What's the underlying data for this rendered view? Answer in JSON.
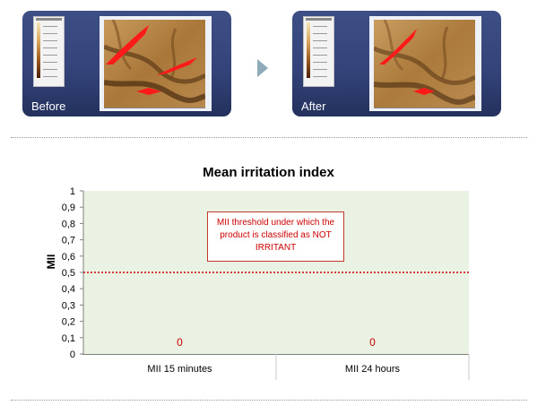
{
  "panels": {
    "before_label": "Before",
    "after_label": "After"
  },
  "colors": {
    "panel_bg": "#34447a",
    "plot_bg": "#e9f2e3",
    "threshold": "#cc0000",
    "arrow": "#8faab9",
    "highlight": "#ff1a1a"
  },
  "icons": {
    "arrow": "chevron-right-icon"
  },
  "chart_data": {
    "type": "bar",
    "title": "Mean irritation index",
    "ylabel": "MII",
    "xlabel": "",
    "categories": [
      "MII 15 minutes",
      "MII 24 hours"
    ],
    "values": [
      0,
      0
    ],
    "data_labels": [
      "0",
      "0"
    ],
    "ylim": [
      0,
      1
    ],
    "yticks": [
      "0",
      "0,1",
      "0,2",
      "0,3",
      "0,4",
      "0,5",
      "0,6",
      "0,7",
      "0,8",
      "0,9",
      "1"
    ],
    "threshold": 0.5,
    "annotation": "MII  threshold under which the product is classified  as NOT IRRITANT",
    "grid": false,
    "legend": "none"
  }
}
